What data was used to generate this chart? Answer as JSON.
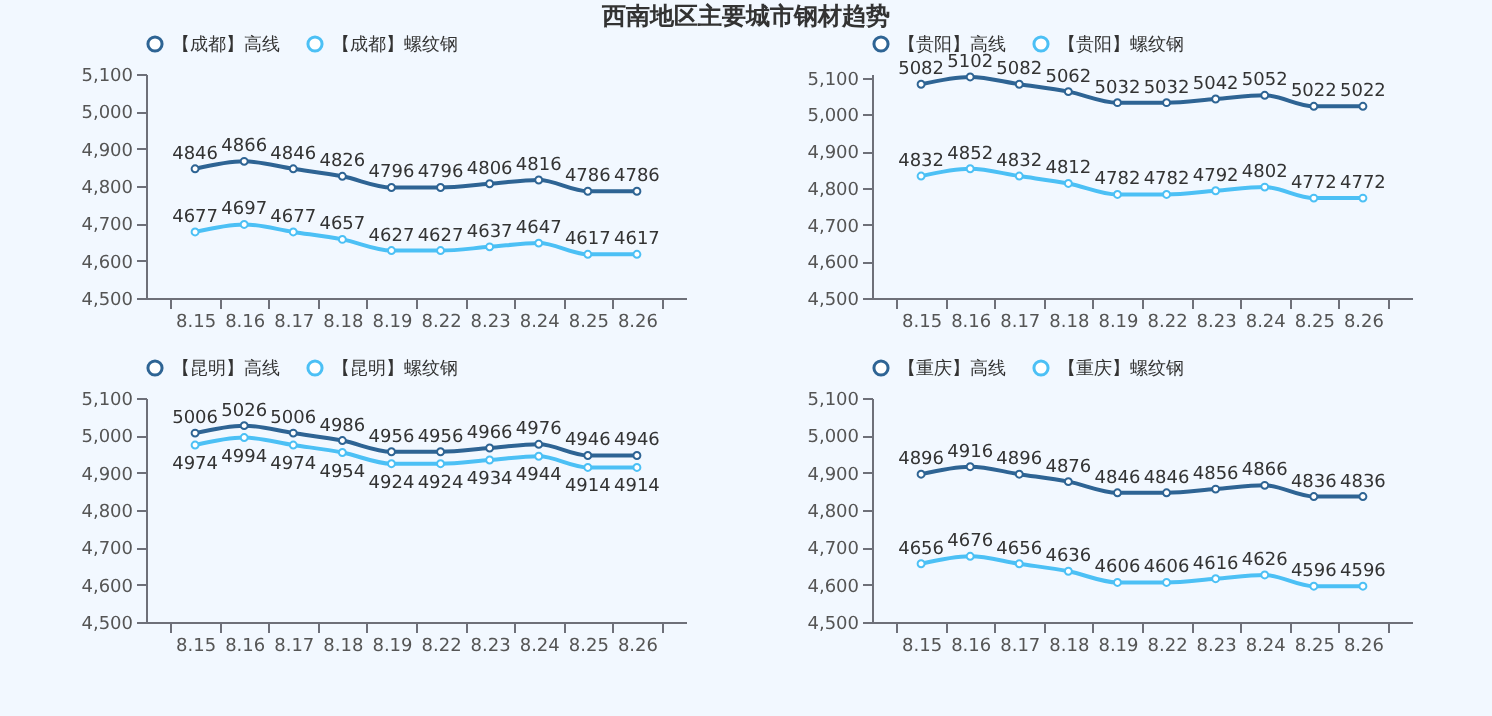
{
  "chart_data": [
    {
      "type": "line",
      "title": "西南地区主要城市钢材趋势",
      "categories": [
        "8.15",
        "8.16",
        "8.17",
        "8.18",
        "8.19",
        "8.22",
        "8.23",
        "8.24",
        "8.25",
        "8.26"
      ],
      "ylim": [
        4500,
        5100
      ],
      "yticks": [
        {
          "value": 4500,
          "label": "4,500"
        },
        {
          "value": 4600,
          "label": "4,600"
        },
        {
          "value": 4700,
          "label": "4,700"
        },
        {
          "value": 4800,
          "label": "4,800"
        },
        {
          "value": 4900,
          "label": "4,900"
        },
        {
          "value": 5000,
          "label": "5,000"
        },
        {
          "value": 5100,
          "label": "5,100"
        }
      ],
      "grid": false,
      "legend": "top",
      "marker": "circle",
      "data_labels": true,
      "series": [
        {
          "name": "【成都】高线",
          "color": "#2e6494",
          "values": [
            4846,
            4866,
            4846,
            4826,
            4796,
            4796,
            4806,
            4816,
            4786,
            4786
          ]
        },
        {
          "name": "【成都】螺纹钢",
          "color": "#4cc0f5",
          "values": [
            4677,
            4697,
            4677,
            4657,
            4627,
            4627,
            4637,
            4647,
            4617,
            4617
          ]
        }
      ]
    },
    {
      "type": "line",
      "categories": [
        "8.15",
        "8.16",
        "8.17",
        "8.18",
        "8.19",
        "8.22",
        "8.23",
        "8.24",
        "8.25",
        "8.26"
      ],
      "ylim": [
        4500,
        5110
      ],
      "yticks": [
        {
          "value": 4500,
          "label": "4,500"
        },
        {
          "value": 4600,
          "label": "4,600"
        },
        {
          "value": 4700,
          "label": "4,700"
        },
        {
          "value": 4800,
          "label": "4,800"
        },
        {
          "value": 4900,
          "label": "4,900"
        },
        {
          "value": 5000,
          "label": "5,000"
        },
        {
          "value": 5100,
          "label": "5,100"
        }
      ],
      "grid": false,
      "legend": "top",
      "marker": "circle",
      "data_labels": true,
      "series": [
        {
          "name": "【贵阳】高线",
          "color": "#2e6494",
          "values": [
            5082,
            5102,
            5082,
            5062,
            5032,
            5032,
            5042,
            5052,
            5022,
            5022
          ]
        },
        {
          "name": "【贵阳】螺纹钢",
          "color": "#4cc0f5",
          "values": [
            4832,
            4852,
            4832,
            4812,
            4782,
            4782,
            4792,
            4802,
            4772,
            4772
          ]
        }
      ]
    },
    {
      "type": "line",
      "categories": [
        "8.15",
        "8.16",
        "8.17",
        "8.18",
        "8.19",
        "8.22",
        "8.23",
        "8.24",
        "8.25",
        "8.26"
      ],
      "ylim": [
        4500,
        5100
      ],
      "yticks": [
        {
          "value": 4500,
          "label": "4,500"
        },
        {
          "value": 4600,
          "label": "4,600"
        },
        {
          "value": 4700,
          "label": "4,700"
        },
        {
          "value": 4800,
          "label": "4,800"
        },
        {
          "value": 4900,
          "label": "4,900"
        },
        {
          "value": 5000,
          "label": "5,000"
        },
        {
          "value": 5100,
          "label": "5,100"
        }
      ],
      "grid": false,
      "legend": "top",
      "marker": "circle",
      "data_labels": true,
      "series": [
        {
          "name": "【昆明】高线",
          "color": "#2e6494",
          "values": [
            5006,
            5026,
            5006,
            4986,
            4956,
            4956,
            4966,
            4976,
            4946,
            4946
          ]
        },
        {
          "name": "【昆明】螺纹钢",
          "color": "#4cc0f5",
          "values": [
            4974,
            4994,
            4974,
            4954,
            4924,
            4924,
            4934,
            4944,
            4914,
            4914
          ]
        }
      ]
    },
    {
      "type": "line",
      "categories": [
        "8.15",
        "8.16",
        "8.17",
        "8.18",
        "8.19",
        "8.22",
        "8.23",
        "8.24",
        "8.25",
        "8.26"
      ],
      "ylim": [
        4500,
        5100
      ],
      "yticks": [
        {
          "value": 4500,
          "label": "4,500"
        },
        {
          "value": 4600,
          "label": "4,600"
        },
        {
          "value": 4700,
          "label": "4,700"
        },
        {
          "value": 4800,
          "label": "4,800"
        },
        {
          "value": 4900,
          "label": "4,900"
        },
        {
          "value": 5000,
          "label": "5,000"
        },
        {
          "value": 5100,
          "label": "5,100"
        }
      ],
      "grid": false,
      "legend": "top",
      "marker": "circle",
      "data_labels": true,
      "series": [
        {
          "name": "【重庆】高线",
          "color": "#2e6494",
          "values": [
            4896,
            4916,
            4896,
            4876,
            4846,
            4846,
            4856,
            4866,
            4836,
            4836
          ]
        },
        {
          "name": "【重庆】螺纹钢",
          "color": "#4cc0f5",
          "values": [
            4656,
            4676,
            4656,
            4636,
            4606,
            4606,
            4616,
            4626,
            4596,
            4596
          ]
        }
      ]
    }
  ]
}
